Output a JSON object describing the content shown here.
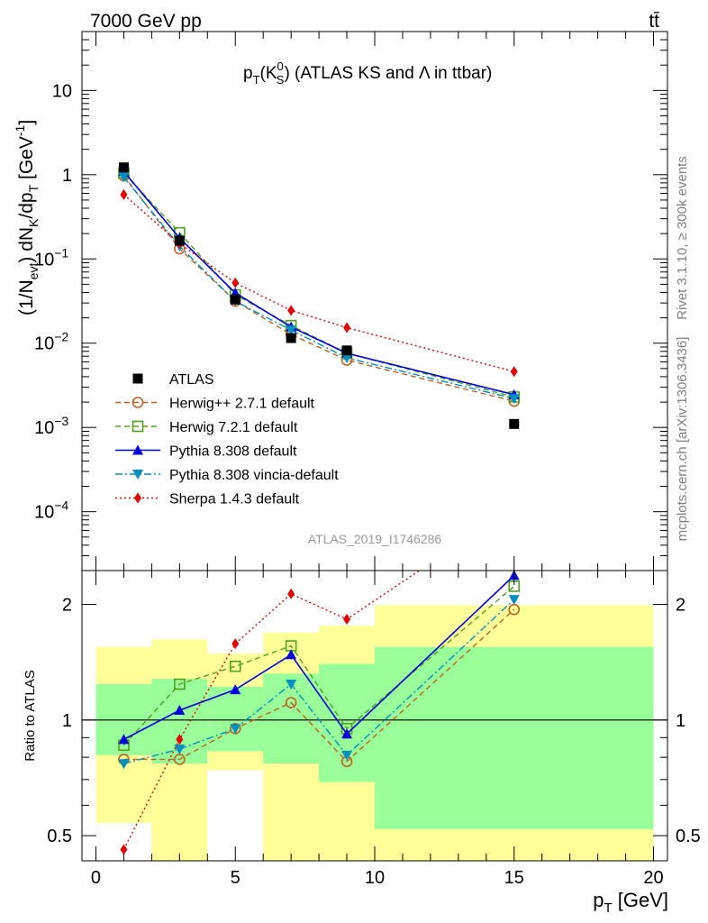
{
  "header": {
    "energy_label": "7000 GeV pp",
    "process_label": "tt̄"
  },
  "side_labels": {
    "rivet": "Rivet 3.1.10, ≥ 300k events",
    "mcplots": "mcplots.cern.ch [arXiv:1306.3436]"
  },
  "analysis_id": "ATLAS_2019_I1746286",
  "chart_data": [
    {
      "type": "line",
      "title_main": "p",
      "title_sub1": "T",
      "title_paren_open": "(K",
      "title_sup": "0",
      "title_sub2": "S",
      "title_paren_close": ")",
      "title_rest": " (ATLAS KS and Λ in ttbar)",
      "ylabel": "(1/N_evt) dN_K/dp_T [GeV^-1]",
      "yscale": "log",
      "ylim": [
        2e-05,
        50
      ],
      "xlim": [
        -0.5,
        20.5
      ],
      "y_ticks": [
        {
          "value": 10,
          "label": "10",
          "exp": ""
        },
        {
          "value": 1,
          "label": "1",
          "exp": ""
        },
        {
          "value": 0.1,
          "label": "10",
          "exp": "−1"
        },
        {
          "value": 0.01,
          "label": "10",
          "exp": "−2"
        },
        {
          "value": 0.001,
          "label": "10",
          "exp": "−3"
        },
        {
          "value": 0.0001,
          "label": "10",
          "exp": "−4"
        }
      ],
      "data": {
        "name": "ATLAS",
        "x": [
          1,
          3,
          5,
          7,
          9,
          15
        ],
        "y": [
          1.22,
          0.165,
          0.033,
          0.0115,
          0.0082,
          0.0011
        ]
      },
      "series": [
        {
          "name": "Herwig++ 2.7.1 default",
          "color": "#c06020",
          "style": "dashed",
          "marker": "circle-open",
          "x": [
            1,
            3,
            5,
            7,
            9,
            15
          ],
          "y": [
            0.97,
            0.132,
            0.0315,
            0.0127,
            0.0063,
            0.00205
          ]
        },
        {
          "name": "Herwig 7.2.1 default",
          "color": "#50a020",
          "style": "dashed",
          "marker": "square-open",
          "x": [
            1,
            3,
            5,
            7,
            9,
            15
          ],
          "y": [
            1.05,
            0.205,
            0.0375,
            0.0162,
            0.0076,
            0.0023
          ]
        },
        {
          "name": "Pythia 8.308 default",
          "color": "#0000dd",
          "style": "solid",
          "marker": "triangle-up",
          "x": [
            1,
            3,
            5,
            7,
            9,
            15
          ],
          "y": [
            1.09,
            0.177,
            0.0395,
            0.0156,
            0.0076,
            0.00245
          ]
        },
        {
          "name": "Pythia 8.308 vincia-default",
          "color": "#0090c0",
          "style": "dashdot",
          "marker": "triangle-down",
          "x": [
            1,
            3,
            5,
            7,
            9,
            15
          ],
          "y": [
            0.94,
            0.142,
            0.0315,
            0.0143,
            0.0067,
            0.0022
          ]
        },
        {
          "name": "Sherpa 1.4.3 default",
          "color": "#e00000",
          "style": "dotted",
          "marker": "diamond",
          "x": [
            1,
            3,
            5,
            7,
            9,
            15
          ],
          "y": [
            0.58,
            0.152,
            0.052,
            0.0245,
            0.0153,
            0.0046
          ]
        }
      ]
    },
    {
      "type": "line",
      "ylabel": "Ratio to ATLAS",
      "xlabel_main": "p",
      "xlabel_sub": "T",
      "xlabel_unit": " [GeV]",
      "yscale": "log",
      "ylim": [
        0.43,
        2.45
      ],
      "xlim": [
        -0.5,
        20.5
      ],
      "x_ticks": [
        0,
        5,
        10,
        15,
        20
      ],
      "y_ticks": [
        0.5,
        1,
        2
      ],
      "bands": [
        {
          "x0": 0,
          "x1": 2,
          "inner": [
            0.81,
            1.24
          ],
          "outer": [
            0.54,
            1.55
          ]
        },
        {
          "x0": 2,
          "x1": 4,
          "inner": [
            0.77,
            1.28
          ],
          "outer": [
            0.43,
            1.62
          ]
        },
        {
          "x0": 4,
          "x1": 6,
          "inner": [
            0.83,
            1.22
          ],
          "outer": [
            0.74,
            1.49
          ]
        },
        {
          "x0": 6,
          "x1": 8,
          "inner": [
            0.77,
            1.32
          ],
          "outer": [
            0.37,
            1.69
          ]
        },
        {
          "x0": 8,
          "x1": 10,
          "inner": [
            0.69,
            1.4
          ],
          "outer": [
            0.37,
            1.76
          ]
        },
        {
          "x0": 10,
          "x1": 20,
          "inner": [
            0.52,
            1.55
          ],
          "outer": [
            0.3,
            1.99
          ]
        }
      ],
      "series": [
        {
          "name": "Herwig++ 2.7.1 default",
          "x": [
            1,
            3,
            5,
            7,
            9,
            15
          ],
          "y": [
            0.79,
            0.79,
            0.95,
            1.11,
            0.78,
            1.94
          ]
        },
        {
          "name": "Herwig 7.2.1 default",
          "x": [
            1,
            3,
            5,
            7,
            9,
            15
          ],
          "y": [
            0.86,
            1.24,
            1.38,
            1.56,
            0.95,
            2.23
          ]
        },
        {
          "name": "Pythia 8.308 default",
          "x": [
            1,
            3,
            5,
            7,
            9,
            15
          ],
          "y": [
            0.89,
            1.06,
            1.2,
            1.48,
            0.92,
            2.38
          ]
        },
        {
          "name": "Pythia 8.308 vincia-default",
          "x": [
            1,
            3,
            5,
            7,
            9,
            15
          ],
          "y": [
            0.77,
            0.84,
            0.95,
            1.24,
            0.81,
            2.06
          ]
        },
        {
          "name": "Sherpa 1.4.3 default",
          "x": [
            1,
            3,
            5,
            7,
            9,
            11.6
          ],
          "y": [
            0.46,
            0.89,
            1.58,
            2.13,
            1.83,
            2.45
          ]
        }
      ]
    }
  ]
}
